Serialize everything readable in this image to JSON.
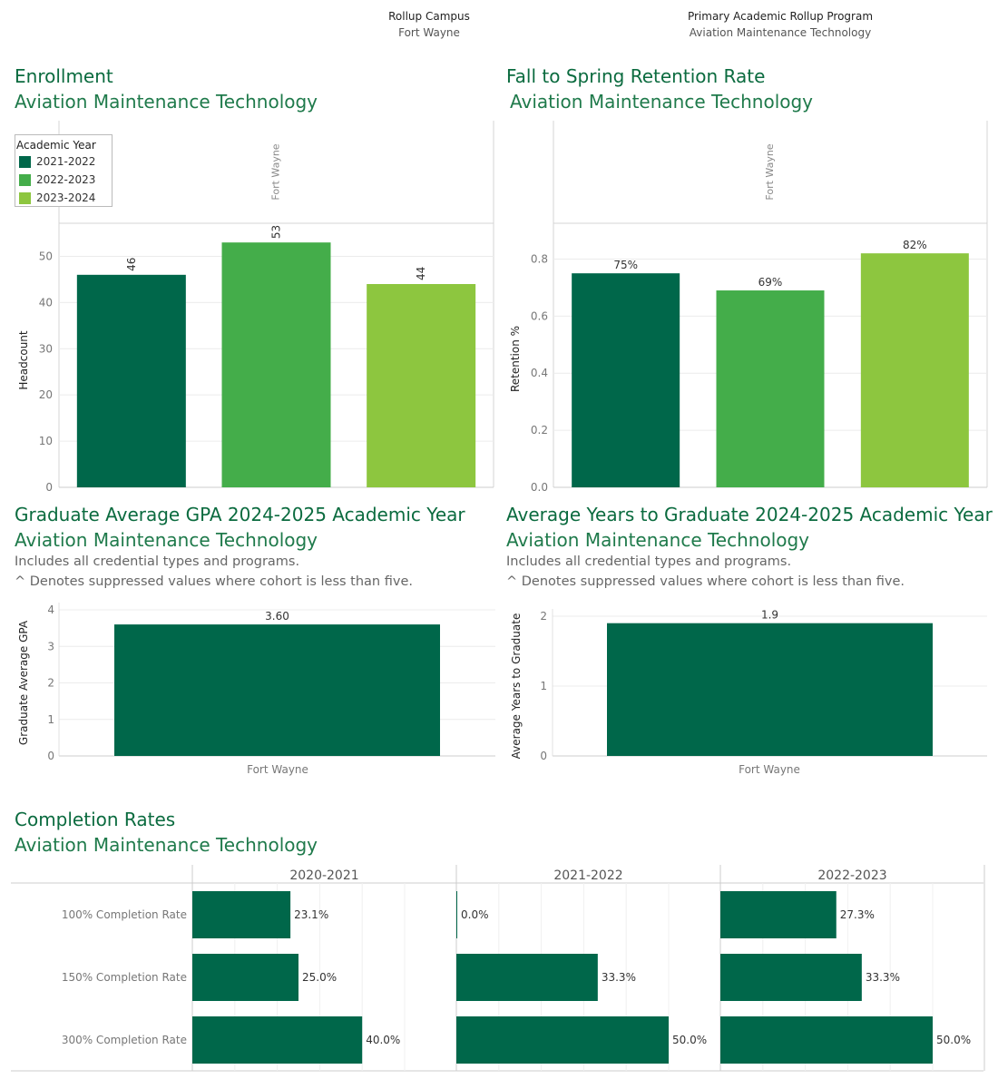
{
  "filters": {
    "campus": {
      "label": "Rollup Campus",
      "value": "Fort Wayne"
    },
    "program": {
      "label": "Primary Academic Rollup Program",
      "value": "Aviation Maintenance Technology"
    }
  },
  "colors": {
    "dark": "#00674a",
    "mid": "#44ad4a",
    "light": "#8dc63f",
    "title": "#0b6b3f"
  },
  "enrollment": {
    "title": "Enrollment",
    "subtitle": "Aviation Maintenance Technology",
    "legend": {
      "title": "Academic Year",
      "items": [
        {
          "label": "2021-2022",
          "color": "#00674a"
        },
        {
          "label": "2022-2023",
          "color": "#44ad4a"
        },
        {
          "label": "2023-2024",
          "color": "#8dc63f"
        }
      ]
    }
  },
  "retention": {
    "title": "Fall to Spring Retention Rate",
    "subtitle": "Aviation Maintenance Technology"
  },
  "gpa": {
    "title": "Graduate Average GPA 2024-2025 Academic Year",
    "subtitle": "Aviation Maintenance Technology",
    "note1": "Includes all credential types and programs.",
    "note2": "^ Denotes suppressed values where cohort is less than five."
  },
  "years": {
    "title": "Average Years to Graduate 2024-2025 Academic Year",
    "subtitle": "Aviation Maintenance Technology",
    "note1": "Includes all credential types and programs.",
    "note2": "^ Denotes suppressed values where cohort is less than five."
  },
  "completion": {
    "title": "Completion Rates",
    "subtitle": "Aviation Maintenance Technology"
  },
  "chart_data": [
    {
      "id": "enrollment",
      "type": "bar",
      "panel_header": "Fort Wayne",
      "categories": [
        "2021-2022",
        "2022-2023",
        "2023-2024"
      ],
      "values": [
        46,
        53,
        44
      ],
      "labels": [
        "46",
        "53",
        "44"
      ],
      "ylabel": "Headcount",
      "yticks": [
        0,
        10,
        20,
        30,
        40,
        50
      ],
      "ylim": [
        0,
        55
      ]
    },
    {
      "id": "retention",
      "type": "bar",
      "panel_header": "Fort Wayne",
      "categories": [
        "2021-2022",
        "2022-2023",
        "2023-2024"
      ],
      "values": [
        0.75,
        0.69,
        0.82
      ],
      "labels": [
        "75%",
        "69%",
        "82%"
      ],
      "ylabel": "Retention %",
      "yticks": [
        0.0,
        0.2,
        0.4,
        0.6,
        0.8
      ],
      "ytick_labels": [
        "0.0",
        "0.2",
        "0.4",
        "0.6",
        "0.8"
      ],
      "ylim": [
        0,
        0.9
      ]
    },
    {
      "id": "gpa",
      "type": "bar",
      "categories": [
        "Fort Wayne"
      ],
      "values": [
        3.6
      ],
      "labels": [
        "3.60"
      ],
      "ylabel": "Graduate Average GPA",
      "yticks": [
        0,
        1,
        2,
        3,
        4
      ],
      "ylim": [
        0,
        4
      ]
    },
    {
      "id": "years",
      "type": "bar",
      "categories": [
        "Fort Wayne"
      ],
      "values": [
        1.9
      ],
      "labels": [
        "1.9"
      ],
      "ylabel": "Average Years to Graduate",
      "yticks": [
        0,
        1,
        2
      ],
      "ylim": [
        0,
        2
      ]
    },
    {
      "id": "completion",
      "type": "bar",
      "orientation": "horizontal",
      "categories": [
        "100% Completion Rate",
        "150% Completion Rate",
        "300% Completion Rate"
      ],
      "series": [
        {
          "name": "2020-2021",
          "values": [
            23.1,
            25.0,
            40.0
          ],
          "labels": [
            "23.1%",
            "25.0%",
            "40.0%"
          ]
        },
        {
          "name": "2021-2022",
          "values": [
            0.0,
            33.3,
            50.0
          ],
          "labels": [
            "0.0%",
            "33.3%",
            "50.0%"
          ]
        },
        {
          "name": "2022-2023",
          "values": [
            27.3,
            33.3,
            50.0
          ],
          "labels": [
            "27.3%",
            "33.3%",
            "50.0%"
          ]
        }
      ],
      "xlim": [
        0,
        60
      ]
    }
  ]
}
